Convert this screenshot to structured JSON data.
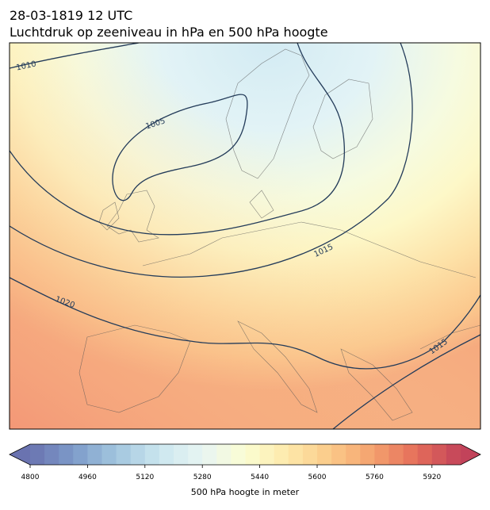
{
  "title": "28-03-1819 12 UTC",
  "subtitle": "Luchtdruk op zeeniveau in hPa en 500 hPa hoogte",
  "contour_labels": [
    1010,
    1005,
    1015,
    1020,
    1015
  ],
  "colorbar": {
    "label": "500 hPa hoogte in meter",
    "lim": [
      4800,
      6000
    ],
    "step": 40,
    "ticks": [
      4800,
      4960,
      5120,
      5280,
      5440,
      5600,
      5760,
      5920
    ],
    "colors": [
      "#6a73b0",
      "#7d9bc9",
      "#a2c6de",
      "#cbe6ef",
      "#e8f5f3",
      "#fbfdd2",
      "#fde8a9",
      "#fbc988",
      "#f4a06d",
      "#e46c5a",
      "#c2435a"
    ]
  }
}
